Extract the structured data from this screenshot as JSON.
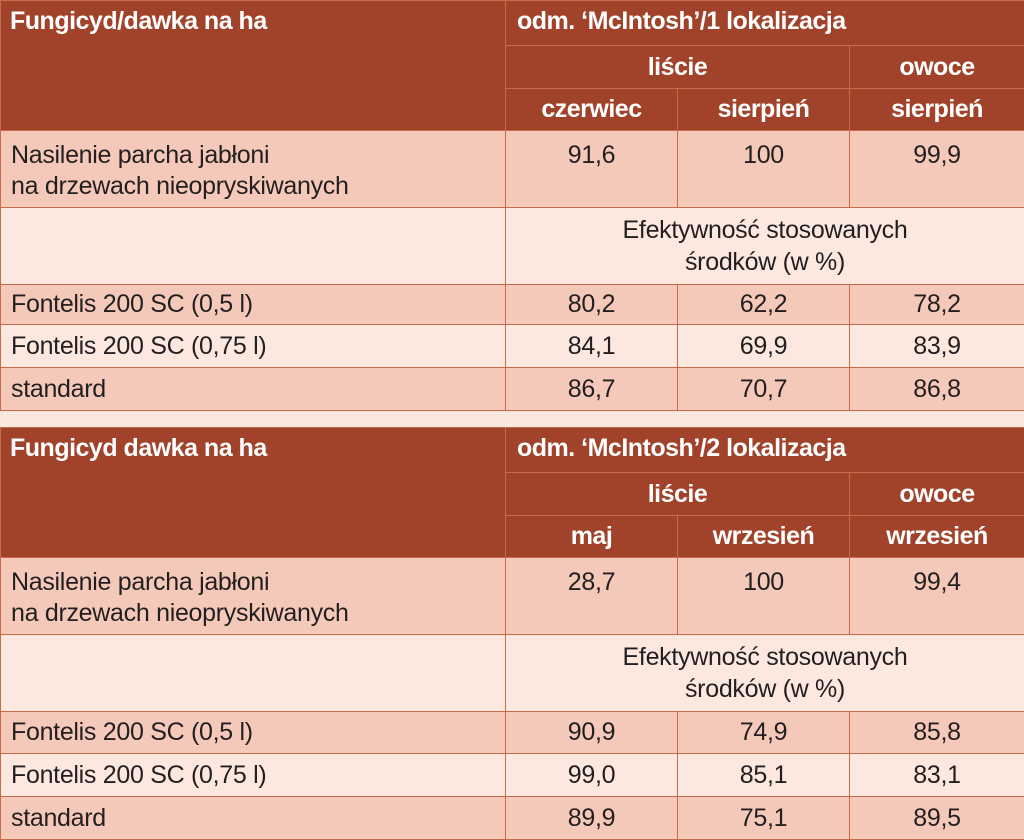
{
  "tables": [
    {
      "header": {
        "fungicide_label": "Fungicyd/dawka na ha",
        "cultivar_label": "odm. ‘McIntosh’/1 lokalizacja",
        "group_leaves": "liście",
        "group_fruits": "owoce",
        "col_1": "czerwiec",
        "col_2": "sierpień",
        "col_3": "sierpień"
      },
      "severity": {
        "label_line1": "Nasilenie parcha jabłoni",
        "label_line2": "na drzewach nieopryskiwanych",
        "values": [
          "91,6",
          "100",
          "99,9"
        ]
      },
      "efficacy": {
        "line1": "Efektywność stosowanych",
        "line2": "środków (w %)"
      },
      "rows": [
        {
          "label": "Fontelis 200 SC (0,5 l)",
          "values": [
            "80,2",
            "62,2",
            "78,2"
          ]
        },
        {
          "label": "Fontelis 200 SC (0,75 l)",
          "values": [
            "84,1",
            "69,9",
            "83,9"
          ]
        },
        {
          "label": "standard",
          "values": [
            "86,7",
            "70,7",
            "86,8"
          ]
        }
      ]
    },
    {
      "header": {
        "fungicide_label": "Fungicyd dawka na ha",
        "cultivar_label": "odm. ‘McIntosh’/2 lokalizacja",
        "group_leaves": "liście",
        "group_fruits": "owoce",
        "col_1": "maj",
        "col_2": "wrzesień",
        "col_3": "wrzesień"
      },
      "severity": {
        "label_line1": "Nasilenie parcha jabłoni",
        "label_line2": "na drzewach nieopryskiwanych",
        "values": [
          "28,7",
          "100",
          "99,4"
        ]
      },
      "efficacy": {
        "line1": "Efektywność stosowanych",
        "line2": "środków (w %)"
      },
      "rows": [
        {
          "label": "Fontelis 200 SC (0,5 l)",
          "values": [
            "90,9",
            "74,9",
            "85,8"
          ]
        },
        {
          "label": "Fontelis 200 SC (0,75 l)",
          "values": [
            "99,0",
            "85,1",
            "83,1"
          ]
        },
        {
          "label": "standard",
          "values": [
            "89,9",
            "75,1",
            "89,5"
          ]
        }
      ]
    }
  ],
  "colors": {
    "header_bg": "#a0432a",
    "row_dark": "#f5c9b9",
    "row_light": "#fce8df",
    "border": "#c96a4a"
  }
}
